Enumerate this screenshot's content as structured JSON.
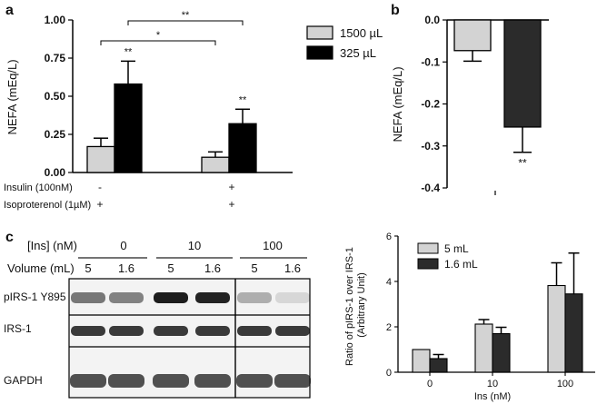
{
  "panels": {
    "a": "a",
    "b": "b",
    "c": "c"
  },
  "chart_data": [
    {
      "type": "bar",
      "panel": "a",
      "ylabel": "NEFA (mEq/L)",
      "ylim": [
        0,
        1.0
      ],
      "yticks": [
        "0.00",
        "0.25",
        "0.50",
        "0.75",
        "1.00"
      ],
      "series": [
        {
          "name": "1500 µL",
          "color": "#d3d3d3",
          "values": [
            0.17,
            0.1
          ],
          "errors": [
            0.055,
            0.035
          ]
        },
        {
          "name": "325 µL",
          "color": "#000000",
          "values": [
            0.58,
            0.32
          ],
          "errors": [
            0.15,
            0.095
          ]
        }
      ],
      "bar_annotations": [
        "",
        "**",
        "",
        "**"
      ],
      "conditions": {
        "rows": [
          {
            "label": "Insulin (100nM)",
            "values": [
              "-",
              "+"
            ]
          },
          {
            "label": "Isoproterenol (1µM)",
            "values": [
              "+",
              "+"
            ]
          }
        ]
      },
      "significance": [
        {
          "label": "*",
          "from_bar": 0,
          "to_bar": 2
        },
        {
          "label": "**",
          "from_bar": 1,
          "to_bar": 3
        }
      ],
      "legend": "right",
      "grid": false
    },
    {
      "type": "bar",
      "panel": "b",
      "ylabel": "NEFA (mEq/L)",
      "ylim": [
        -0.4,
        0.0
      ],
      "yticks": [
        "0.0",
        "-0.1",
        "-0.2",
        "-0.3",
        "-0.4"
      ],
      "series": [
        {
          "name": "",
          "color": "#d3d3d3",
          "values": [
            -0.073
          ],
          "errors": [
            0.025
          ]
        },
        {
          "name": "",
          "color": "#2b2b2b",
          "values": [
            -0.255
          ],
          "errors": [
            0.06
          ]
        }
      ],
      "bar_annotations": [
        "",
        "**"
      ],
      "grid": false
    },
    {
      "type": "bar",
      "panel": "c",
      "ylabel": "Ratio of pIRS-1 over IRS-1\n(Arbitrary Unit)",
      "ylabel_lines": [
        "Ratio of pIRS-1 over IRS-1",
        "(Arbitrary Unit)"
      ],
      "xlabel": "Ins (nM)",
      "categories": [
        "0",
        "10",
        "100"
      ],
      "ylim": [
        0,
        6
      ],
      "yticks": [
        "0",
        "2",
        "4",
        "6"
      ],
      "series": [
        {
          "name": "5 mL",
          "color": "#d3d3d3",
          "values": [
            1.0,
            2.12,
            3.82
          ],
          "errors": [
            0,
            0.2,
            1.0
          ]
        },
        {
          "name": "1.6 mL",
          "color": "#2b2b2b",
          "values": [
            0.6,
            1.7,
            3.45
          ],
          "errors": [
            0.18,
            0.28,
            1.8
          ]
        }
      ],
      "legend": "top-left",
      "grid": false
    }
  ],
  "blot": {
    "ins_label": "[Ins] (nM)",
    "volume_label": "Volume (mL)",
    "ins_groups": [
      "0",
      "10",
      "100"
    ],
    "volumes": [
      "5",
      "1.6",
      "5",
      "1.6",
      "5",
      "1.6"
    ],
    "rows": [
      "pIRS-1 Y895",
      "IRS-1",
      "GAPDH"
    ]
  }
}
